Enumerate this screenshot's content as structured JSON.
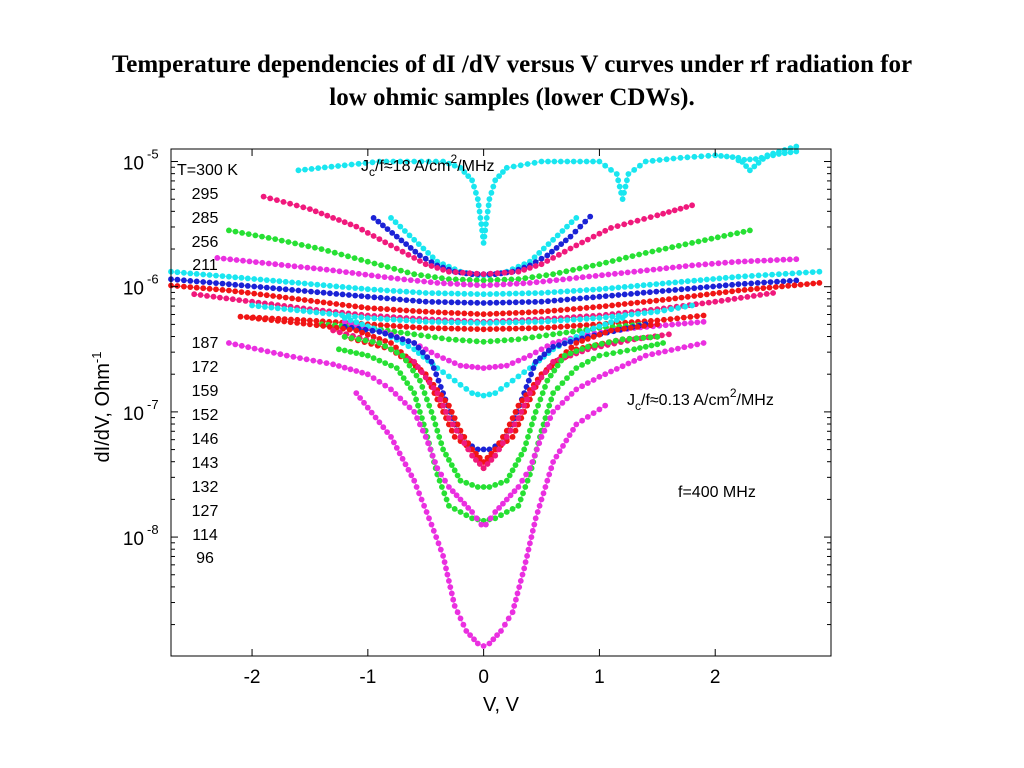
{
  "title": {
    "line1": "Temperature dependencies of dI /dV versus V curves under rf radiation for",
    "line2": "low ohmic samples (lower  CDWs)."
  },
  "chart_data": {
    "type": "scatter",
    "xlabel": "V, V",
    "ylabel": "dI/dV, Ohm",
    "ylabel_sup": "-1",
    "x_ticks": [
      -2,
      -1,
      0,
      1,
      2
    ],
    "x_tick_labels": [
      "-2",
      "-1",
      "0",
      "1",
      "2"
    ],
    "xlim": [
      -2.7,
      3.0
    ],
    "y_scale": "log",
    "ylim_log10": [
      -8.95,
      -4.9
    ],
    "y_ticks_log10": [
      -5,
      -6,
      -7,
      -8
    ],
    "y_tick_labels": [
      {
        "base": "10",
        "exp": "-5"
      },
      {
        "base": "10",
        "exp": "-6"
      },
      {
        "base": "10",
        "exp": "-7"
      },
      {
        "base": "10",
        "exp": "-8"
      }
    ],
    "temperature_labels": [
      "T=300 K",
      "295",
      "285",
      "256",
      "211",
      "187",
      "172",
      "159",
      "152",
      "146",
      "143",
      "132",
      "127",
      "114",
      "96"
    ],
    "annotations": {
      "jc_high": {
        "pre": "J",
        "sub": "c",
        "mid": "/f≈18 A/cm",
        "sup": "2",
        "post": "/MHz"
      },
      "jc_low": {
        "pre": "J",
        "sub": "c",
        "mid": "/f≈0.13 A/cm",
        "sup": "2",
        "post": "/MHz"
      },
      "freq": "f=400 MHz"
    },
    "colors": {
      "cyan": "#19e6f0",
      "magenta": "#ea2fe0",
      "pink": "#f0197c",
      "green": "#26e033",
      "blue": "#1b22d6",
      "red": "#f01515"
    },
    "series": [
      {
        "color": "cyan",
        "x": [
          -1.6,
          -1.2,
          -0.9,
          -0.6,
          -0.35,
          -0.2,
          -0.1,
          -0.05,
          -0.02,
          0.0,
          0.02,
          0.05,
          0.1,
          0.2,
          0.5,
          1.0,
          1.15,
          1.2,
          1.25,
          1.4,
          1.7,
          2.0,
          2.2,
          2.3,
          2.45,
          2.7
        ],
        "log_y": [
          -5.07,
          -5.03,
          -5.0,
          -5.0,
          -5.0,
          -5.05,
          -5.15,
          -5.3,
          -5.5,
          -5.65,
          -5.5,
          -5.3,
          -5.15,
          -5.05,
          -5.0,
          -5.0,
          -5.1,
          -5.3,
          -5.1,
          -5.0,
          -4.97,
          -4.95,
          -4.97,
          -5.07,
          -4.95,
          -4.88
        ]
      },
      {
        "color": "cyan",
        "x": [
          2.2,
          2.35,
          2.45,
          2.55,
          2.7
        ],
        "log_y": [
          -4.99,
          -4.98,
          -4.96,
          -4.94,
          -4.92
        ]
      },
      {
        "color": "cyan",
        "x": [
          -0.8,
          -0.4,
          -0.2,
          -0.05,
          0.05,
          0.2,
          0.4,
          0.8
        ],
        "log_y": [
          -5.45,
          -5.8,
          -5.88,
          -5.91,
          -5.91,
          -5.88,
          -5.8,
          -5.45
        ]
      },
      {
        "color": "blue",
        "x": [
          -0.95,
          -0.75,
          -0.55,
          -0.4,
          -0.25,
          -0.1,
          0.0,
          0.1,
          0.25,
          0.4,
          0.55,
          0.75,
          0.92
        ],
        "log_y": [
          -5.45,
          -5.6,
          -5.75,
          -5.83,
          -5.88,
          -5.9,
          -5.9,
          -5.9,
          -5.88,
          -5.83,
          -5.75,
          -5.6,
          -5.44
        ]
      },
      {
        "color": "pink",
        "x": [
          -1.9,
          -1.5,
          -1.1,
          -0.8,
          -0.5,
          -0.3,
          0.0,
          0.3,
          0.5,
          0.8,
          1.1,
          1.5,
          1.8
        ],
        "log_y": [
          -5.28,
          -5.38,
          -5.52,
          -5.67,
          -5.82,
          -5.88,
          -5.9,
          -5.88,
          -5.82,
          -5.67,
          -5.53,
          -5.43,
          -5.35
        ]
      },
      {
        "color": "green",
        "x": [
          -2.2,
          -1.8,
          -1.4,
          -1.0,
          -0.6,
          -0.3,
          0.0,
          0.3,
          0.6,
          1.0,
          1.4,
          1.8,
          2.3
        ],
        "log_y": [
          -5.55,
          -5.62,
          -5.7,
          -5.8,
          -5.9,
          -5.94,
          -5.95,
          -5.94,
          -5.9,
          -5.82,
          -5.73,
          -5.65,
          -5.55
        ]
      },
      {
        "color": "magenta",
        "x": [
          -2.3,
          -1.8,
          -1.3,
          -0.8,
          -0.4,
          0.0,
          0.4,
          0.8,
          1.3,
          1.8,
          2.2,
          2.7
        ],
        "log_y": [
          -5.77,
          -5.82,
          -5.87,
          -5.93,
          -5.97,
          -5.99,
          -5.97,
          -5.93,
          -5.88,
          -5.83,
          -5.8,
          -5.78
        ]
      },
      {
        "color": "cyan",
        "x": [
          -2.7,
          -2.2,
          -1.6,
          -1.0,
          -0.5,
          0.0,
          0.5,
          1.0,
          1.6,
          2.2,
          2.9
        ],
        "log_y": [
          -5.88,
          -5.92,
          -5.97,
          -6.02,
          -6.05,
          -6.06,
          -6.05,
          -6.02,
          -5.97,
          -5.92,
          -5.88
        ]
      },
      {
        "color": "blue",
        "x": [
          -2.7,
          -2.2,
          -1.6,
          -1.0,
          -0.5,
          0.0,
          0.5,
          1.0,
          1.6,
          2.2,
          2.7
        ],
        "log_y": [
          -5.94,
          -5.98,
          -6.03,
          -6.08,
          -6.12,
          -6.13,
          -6.12,
          -6.08,
          -6.03,
          -5.98,
          -5.95
        ]
      },
      {
        "color": "red",
        "x": [
          -2.7,
          -2.2,
          -1.6,
          -1.0,
          -0.5,
          0.0,
          0.5,
          1.0,
          1.6,
          2.2,
          2.9
        ],
        "log_y": [
          -5.99,
          -6.03,
          -6.1,
          -6.17,
          -6.2,
          -6.22,
          -6.2,
          -6.16,
          -6.1,
          -6.03,
          -5.97
        ]
      },
      {
        "color": "pink",
        "x": [
          -2.5,
          -2.0,
          -1.5,
          -1.0,
          -0.5,
          0.0,
          0.5,
          1.0,
          1.5,
          2.0,
          2.5
        ],
        "log_y": [
          -6.06,
          -6.12,
          -6.18,
          -6.23,
          -6.26,
          -6.28,
          -6.26,
          -6.23,
          -6.18,
          -6.12,
          -6.05
        ]
      },
      {
        "color": "cyan",
        "x": [
          -2.0,
          -1.5,
          -1.0,
          -0.5,
          0.0,
          0.5,
          1.0,
          1.5,
          1.8
        ],
        "log_y": [
          -6.15,
          -6.2,
          -6.25,
          -6.28,
          -6.29,
          -6.28,
          -6.25,
          -6.2,
          -6.15
        ]
      },
      {
        "color": "red",
        "x": [
          -2.1,
          -1.5,
          -1.0,
          -0.5,
          0.0,
          0.5,
          1.0,
          1.5,
          1.9
        ],
        "log_y": [
          -6.24,
          -6.27,
          -6.3,
          -6.33,
          -6.34,
          -6.33,
          -6.3,
          -6.27,
          -6.23
        ]
      },
      {
        "color": "green",
        "x": [
          -1.4,
          -1.0,
          -0.6,
          -0.3,
          0.0,
          0.3,
          0.6,
          1.0,
          1.4
        ],
        "log_y": [
          -6.3,
          -6.33,
          -6.38,
          -6.42,
          -6.44,
          -6.42,
          -6.38,
          -6.33,
          -6.3
        ]
      },
      {
        "color": "magenta",
        "x": [
          -1.2,
          -0.9,
          -0.6,
          -0.4,
          -0.2,
          0.0,
          0.2,
          0.4,
          0.6,
          0.9,
          1.3,
          1.9
        ],
        "log_y": [
          -6.28,
          -6.35,
          -6.45,
          -6.55,
          -6.63,
          -6.65,
          -6.63,
          -6.55,
          -6.45,
          -6.38,
          -6.33,
          -6.28
        ]
      },
      {
        "color": "cyan",
        "x": [
          -1.2,
          -0.9,
          -0.6,
          -0.4,
          -0.25,
          -0.1,
          0.0,
          0.1,
          0.25,
          0.4,
          0.6,
          0.9,
          1.2
        ],
        "log_y": [
          -6.25,
          -6.35,
          -6.5,
          -6.65,
          -6.75,
          -6.85,
          -6.87,
          -6.85,
          -6.75,
          -6.65,
          -6.5,
          -6.35,
          -6.25
        ]
      },
      {
        "color": "blue",
        "x": [
          -1.2,
          -0.9,
          -0.6,
          -0.45,
          -0.35,
          -0.25,
          -0.15,
          -0.05,
          0.05,
          0.15,
          0.25,
          0.35,
          0.45,
          0.6,
          0.9,
          1.4
        ],
        "log_y": [
          -6.32,
          -6.36,
          -6.45,
          -6.6,
          -6.85,
          -7.1,
          -7.25,
          -7.3,
          -7.3,
          -7.25,
          -7.1,
          -6.85,
          -6.6,
          -6.48,
          -6.4,
          -6.3
        ]
      },
      {
        "color": "red",
        "x": [
          -2.0,
          -1.5,
          -1.1,
          -0.8,
          -0.5,
          -0.35,
          -0.25,
          -0.1,
          0.0,
          0.1,
          0.25,
          0.35,
          0.5,
          0.8,
          1.1,
          1.5
        ],
        "log_y": [
          -6.25,
          -6.3,
          -6.35,
          -6.45,
          -6.7,
          -7.0,
          -7.2,
          -7.3,
          -7.45,
          -7.3,
          -7.2,
          -7.0,
          -6.7,
          -6.45,
          -6.35,
          -6.3
        ]
      },
      {
        "color": "red",
        "x": [
          -1.2,
          -0.8,
          -0.5,
          -0.3,
          -0.2,
          -0.1,
          0.0,
          0.1,
          0.2,
          0.3,
          0.5,
          0.8,
          1.2,
          1.5
        ],
        "log_y": [
          -6.4,
          -6.5,
          -6.7,
          -6.95,
          -7.15,
          -7.3,
          -7.4,
          -7.3,
          -7.15,
          -6.95,
          -6.7,
          -6.5,
          -6.42,
          -6.4
        ]
      },
      {
        "color": "pink",
        "x": [
          -1.3,
          -0.9,
          -0.6,
          -0.4,
          -0.3,
          -0.2,
          -0.1,
          0.0,
          0.1,
          0.2,
          0.3,
          0.4,
          0.6,
          0.9,
          1.3,
          1.6
        ],
        "log_y": [
          -6.35,
          -6.45,
          -6.6,
          -6.85,
          -7.05,
          -7.2,
          -7.35,
          -7.45,
          -7.35,
          -7.2,
          -7.05,
          -6.85,
          -6.6,
          -6.5,
          -6.42,
          -6.38
        ]
      },
      {
        "color": "green",
        "x": [
          -1.25,
          -1.0,
          -0.75,
          -0.6,
          -0.5,
          -0.4,
          -0.3,
          -0.2,
          -0.1,
          0.0,
          0.1,
          0.2,
          0.3,
          0.4,
          0.5,
          0.6,
          0.8,
          1.0,
          1.3,
          1.55
        ],
        "log_y": [
          -6.5,
          -6.55,
          -6.65,
          -6.85,
          -7.15,
          -7.5,
          -7.75,
          -7.8,
          -7.85,
          -7.87,
          -7.85,
          -7.8,
          -7.75,
          -7.5,
          -7.15,
          -6.85,
          -6.65,
          -6.55,
          -6.5,
          -6.45
        ]
      },
      {
        "color": "green",
        "x": [
          -1.2,
          -0.9,
          -0.7,
          -0.55,
          -0.45,
          -0.35,
          -0.2,
          -0.05,
          0.05,
          0.2,
          0.35,
          0.45,
          0.55,
          0.7,
          0.9,
          1.2,
          1.5
        ],
        "log_y": [
          -6.4,
          -6.45,
          -6.55,
          -6.75,
          -7.0,
          -7.3,
          -7.55,
          -7.6,
          -7.6,
          -7.55,
          -7.3,
          -7.0,
          -6.75,
          -6.55,
          -6.48,
          -6.42,
          -6.4
        ]
      },
      {
        "color": "magenta",
        "x": [
          -2.2,
          -1.7,
          -1.3,
          -1.0,
          -0.8,
          -0.6,
          -0.5,
          -0.4,
          -0.3,
          -0.2,
          -0.1,
          -0.02,
          0.02,
          0.1,
          0.2,
          0.3,
          0.4,
          0.5,
          0.6,
          0.8,
          1.0,
          1.4,
          1.9
        ],
        "log_y": [
          -6.45,
          -6.55,
          -6.62,
          -6.7,
          -6.82,
          -7.0,
          -7.2,
          -7.45,
          -7.6,
          -7.7,
          -7.8,
          -7.9,
          -7.9,
          -7.8,
          -7.7,
          -7.6,
          -7.45,
          -7.2,
          -7.0,
          -6.82,
          -6.72,
          -6.55,
          -6.45
        ]
      },
      {
        "color": "magenta",
        "x": [
          -1.1,
          -0.8,
          -0.6,
          -0.45,
          -0.35,
          -0.25,
          -0.15,
          -0.05,
          0.0,
          0.05,
          0.15,
          0.25,
          0.35,
          0.45,
          0.6,
          0.8,
          1.05
        ],
        "log_y": [
          -6.85,
          -7.2,
          -7.55,
          -7.9,
          -8.15,
          -8.55,
          -8.75,
          -8.85,
          -8.87,
          -8.85,
          -8.75,
          -8.6,
          -8.25,
          -7.85,
          -7.4,
          -7.1,
          -6.95
        ]
      }
    ]
  }
}
